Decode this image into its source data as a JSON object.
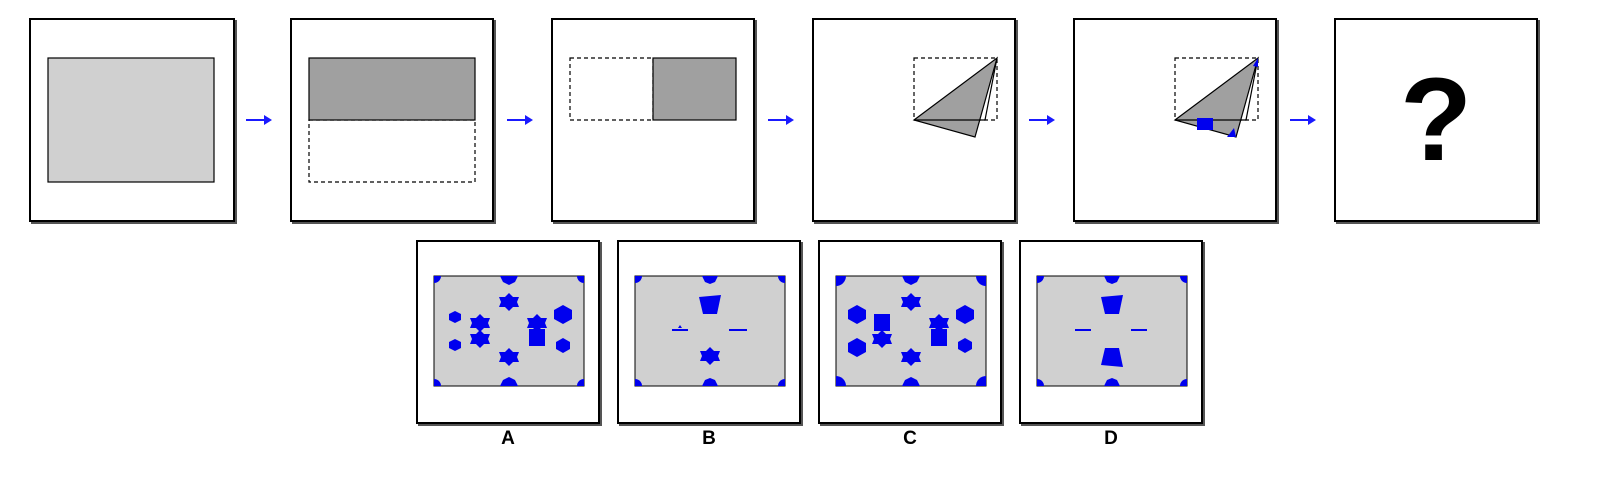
{
  "question_mark": "?",
  "options": [
    {
      "label": "A"
    },
    {
      "label": "B"
    },
    {
      "label": "C"
    },
    {
      "label": "D"
    }
  ],
  "colors": {
    "paper": "#d0d0d0",
    "folded": "#a0a0a0",
    "hole": "#0000ee",
    "arrow": "#1a1aff"
  }
}
